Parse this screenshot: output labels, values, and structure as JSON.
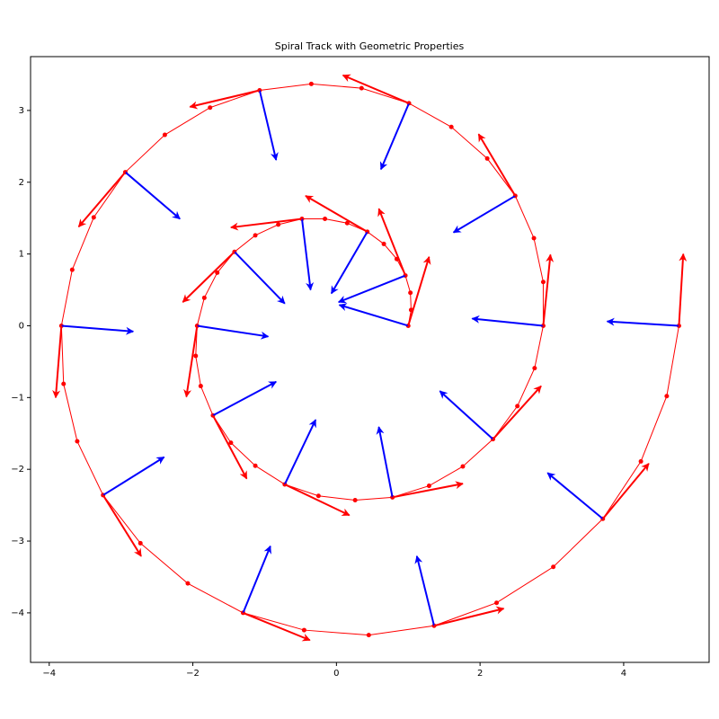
{
  "chart_data": {
    "type": "spiral",
    "title": "Spiral Track with Geometric Properties",
    "xlim": [
      -4.26,
      5.19
    ],
    "ylim": [
      -4.69,
      3.75
    ],
    "xticks": [
      {
        "value": -4,
        "label": "−4"
      },
      {
        "value": -2,
        "label": "−2"
      },
      0,
      2,
      4
    ],
    "yticks": [
      {
        "value": -4,
        "label": "−4"
      },
      {
        "value": -3,
        "label": "−3"
      },
      {
        "value": -2,
        "label": "−2"
      },
      {
        "value": -1,
        "label": "−1"
      },
      0,
      1,
      2,
      3
    ],
    "color": "#ff0000",
    "x": [
      1.0,
      1.04,
      1.03,
      0.96,
      0.84,
      0.66,
      0.43,
      0.15,
      -0.16,
      -0.48,
      -0.81,
      -1.13,
      -1.42,
      -1.66,
      -1.84,
      -1.94,
      -1.96,
      -1.89,
      -1.72,
      -1.47,
      -1.13,
      -0.72,
      -0.25,
      0.26,
      0.78,
      1.29,
      1.76,
      2.18,
      2.52,
      2.76,
      2.88,
      2.88,
      2.75,
      2.49,
      2.1,
      1.6,
      1.01,
      0.35,
      -0.35,
      -1.07,
      -1.76,
      -2.39,
      -2.94,
      -3.38,
      -3.68,
      -3.83,
      -3.8,
      -3.61,
      -3.25,
      -2.73,
      -2.07,
      -1.3,
      -0.45,
      0.45,
      1.36,
      2.23,
      3.02,
      3.71,
      4.24,
      4.6,
      4.77
    ],
    "y": [
      0.0,
      0.22,
      0.46,
      0.7,
      0.93,
      1.14,
      1.31,
      1.43,
      1.49,
      1.49,
      1.41,
      1.26,
      1.03,
      0.74,
      0.39,
      0.0,
      -0.42,
      -0.84,
      -1.25,
      -1.63,
      -1.95,
      -2.21,
      -2.37,
      -2.43,
      -2.39,
      -2.23,
      -1.96,
      -1.58,
      -1.12,
      -0.59,
      0.0,
      0.61,
      1.22,
      1.81,
      2.33,
      2.77,
      3.1,
      3.31,
      3.37,
      3.28,
      3.04,
      2.66,
      2.14,
      1.51,
      0.78,
      0.0,
      -0.81,
      -1.61,
      -2.36,
      -3.03,
      -3.59,
      -4.0,
      -4.24,
      -4.31,
      -4.18,
      -3.86,
      -3.36,
      -2.69,
      -1.89,
      -0.98,
      0.0
    ],
    "arrows": {
      "tangent_color": "#ff0000",
      "normal_color": "#0000ff",
      "x": [
        1.0,
        0.96,
        0.43,
        -0.48,
        -1.42,
        -1.94,
        -1.72,
        -0.72,
        0.78,
        2.18,
        2.88,
        2.49,
        1.01,
        -1.07,
        -2.94,
        -3.83,
        -3.25,
        -1.3,
        1.36,
        3.71,
        4.77
      ],
      "y": [
        0.0,
        0.7,
        1.31,
        1.49,
        1.03,
        0.0,
        -1.25,
        -2.21,
        -2.39,
        -1.58,
        0.0,
        1.81,
        3.1,
        3.28,
        2.14,
        0.0,
        -2.36,
        -4.0,
        -4.18,
        -2.69,
        0.0
      ],
      "tangent_dx": [
        0.29,
        -0.37,
        -0.86,
        -0.99,
        -0.72,
        -0.15,
        0.47,
        0.9,
        0.98,
        0.67,
        0.1,
        -0.51,
        -0.92,
        -0.97,
        -0.65,
        -0.08,
        0.53,
        0.93,
        0.97,
        0.64,
        0.06
      ],
      "tangent_dy": [
        0.96,
        0.93,
        0.5,
        -0.12,
        -0.7,
        -0.99,
        -0.88,
        -0.43,
        0.19,
        0.74,
        0.99,
        0.86,
        0.39,
        -0.23,
        -0.76,
        -1.0,
        -0.85,
        -0.38,
        0.24,
        0.77,
        1.0
      ],
      "normal_dx": [
        -0.96,
        -0.93,
        -0.5,
        0.12,
        0.7,
        0.99,
        0.88,
        0.43,
        -0.19,
        -0.74,
        -0.99,
        -0.86,
        -0.39,
        0.23,
        0.76,
        1.0,
        0.85,
        0.38,
        -0.24,
        -0.77,
        -1.0
      ],
      "normal_dy": [
        0.29,
        -0.37,
        -0.86,
        -0.99,
        -0.72,
        -0.15,
        0.47,
        0.9,
        0.98,
        0.67,
        0.1,
        -0.51,
        -0.92,
        -0.97,
        -0.65,
        -0.08,
        0.53,
        0.93,
        0.97,
        0.64,
        0.06
      ]
    }
  }
}
